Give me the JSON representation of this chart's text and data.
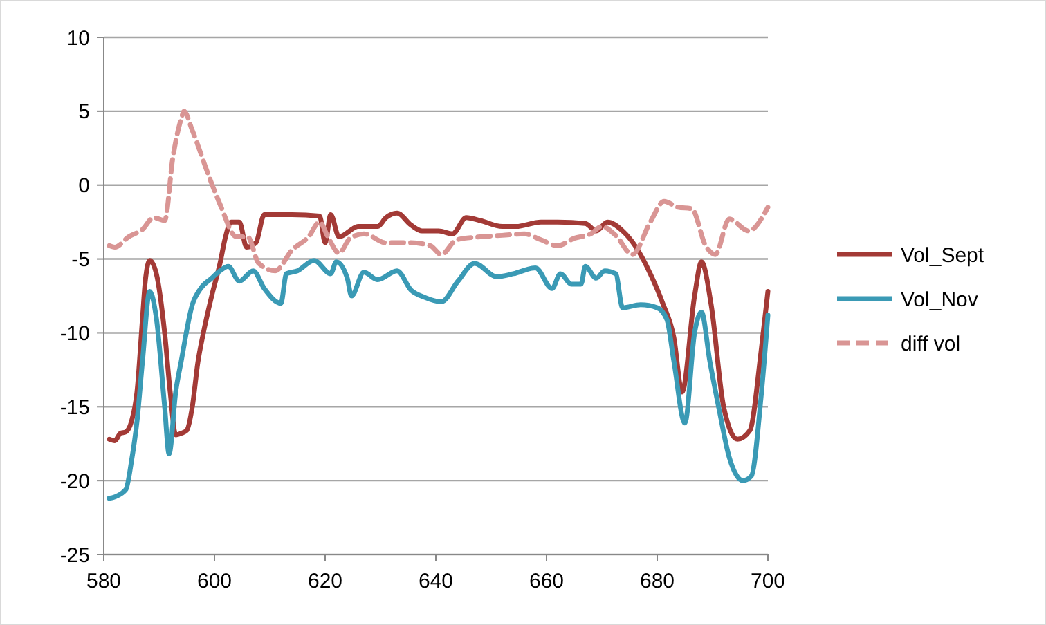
{
  "chart_data": {
    "type": "line",
    "xlim": [
      580,
      700
    ],
    "xticks": [
      580,
      600,
      620,
      640,
      660,
      680,
      700
    ],
    "ylim": [
      -25,
      10
    ],
    "yticks": [
      -25,
      -20,
      -15,
      -10,
      -5,
      0,
      5,
      10
    ],
    "grid": "y",
    "legend": "right",
    "marker": "none",
    "series": [
      {
        "name": "Vol_Sept",
        "color": "#a33a36",
        "line_style": "solid",
        "x": [
          581,
          582,
          583,
          584,
          585,
          586,
          587,
          587.5,
          588.3,
          589.5,
          591,
          592,
          593,
          594,
          595,
          596,
          597,
          598,
          599.5,
          601,
          602,
          603,
          604.5,
          605.8,
          607.5,
          609,
          614,
          619,
          620,
          621,
          622.5,
          626,
          629.5,
          631,
          633,
          635.5,
          637.5,
          640.5,
          643,
          645.5,
          648,
          652,
          654.5,
          659,
          662,
          667,
          669,
          671,
          673.75,
          676,
          678.75,
          681,
          683,
          684.5,
          686.75,
          688,
          689.75,
          692,
          694.5,
          696.75,
          698.75,
          700
        ],
        "values": [
          -17.2,
          -17.3,
          -16.8,
          -16.7,
          -16,
          -14,
          -9,
          -6.5,
          -5.1,
          -6,
          -10,
          -14,
          -16.9,
          -16.8,
          -16.6,
          -15,
          -12,
          -10,
          -7.5,
          -5.3,
          -3.5,
          -2.5,
          -2.5,
          -4.2,
          -3.9,
          -2,
          -2,
          -2.1,
          -3.9,
          -2,
          -3.5,
          -2.8,
          -2.8,
          -2.2,
          -1.9,
          -2.7,
          -3.1,
          -3.1,
          -3.3,
          -2.2,
          -2.4,
          -2.8,
          -2.8,
          -2.5,
          -2.5,
          -2.6,
          -3.1,
          -2.5,
          -3.1,
          -4.1,
          -6,
          -8,
          -10.3,
          -14,
          -7.5,
          -5.2,
          -8.1,
          -15,
          -17.2,
          -16.6,
          -11.3,
          -7.2
        ]
      },
      {
        "name": "Vol_Nov",
        "color": "#3a9ab5",
        "line_style": "solid",
        "x": [
          581,
          582,
          584,
          585,
          586,
          587,
          588.3,
          589.5,
          591,
          591.8,
          593,
          594,
          596,
          597.5,
          599.5,
          601,
          602.5,
          604.5,
          607,
          609,
          612,
          613,
          615,
          618,
          621,
          622,
          624,
          624.75,
          627,
          629.5,
          633,
          635.5,
          638,
          641,
          644,
          647,
          651,
          654,
          658,
          661,
          662.5,
          664.5,
          666.25,
          667,
          669,
          670.5,
          672.5,
          673.75,
          677,
          680,
          681.75,
          683,
          685,
          686.75,
          688,
          689.5,
          691.25,
          693,
          695.5,
          697,
          698.75,
          700
        ],
        "values": [
          -21.2,
          -21.1,
          -20.6,
          -18.7,
          -16,
          -11.9,
          -7.2,
          -9,
          -15,
          -18.2,
          -14,
          -11.9,
          -8.1,
          -7,
          -6.3,
          -5.8,
          -5.5,
          -6.5,
          -5.8,
          -7,
          -8,
          -6,
          -5.8,
          -5.1,
          -6,
          -5.2,
          -6.3,
          -7.5,
          -5.9,
          -6.4,
          -5.8,
          -7.1,
          -7.6,
          -7.9,
          -6.5,
          -5.3,
          -6.2,
          -6,
          -5.6,
          -7,
          -6,
          -6.7,
          -6.7,
          -5.5,
          -6.3,
          -5.8,
          -6,
          -8.3,
          -8.1,
          -8.3,
          -9.1,
          -11.9,
          -16.1,
          -10,
          -8.6,
          -11.9,
          -15.3,
          -18.4,
          -20,
          -19.7,
          -14.4,
          -8.8
        ]
      },
      {
        "name": "diff vol",
        "color": "#d99594",
        "line_style": "dashed",
        "x": [
          581,
          582,
          584.5,
          587,
          589,
          591,
          592.5,
          594,
          594.5,
          596,
          599,
          601,
          604,
          606,
          608,
          611,
          614,
          617,
          619,
          620.5,
          622.5,
          624.5,
          627,
          631,
          635.5,
          639,
          641,
          643.75,
          648,
          652,
          656,
          659,
          662,
          665,
          668,
          670,
          672.5,
          675.5,
          678.75,
          681.25,
          683.75,
          686.25,
          688.75,
          690.5,
          693,
          696.5,
          700
        ],
        "values": [
          -4.1,
          -4.2,
          -3.5,
          -3,
          -2.2,
          -2.4,
          1.9,
          4.5,
          5,
          3.7,
          0.6,
          -1.3,
          -3.5,
          -3.5,
          -5.3,
          -5.8,
          -4.4,
          -3.5,
          -2.5,
          -3.5,
          -4.6,
          -3.6,
          -3.3,
          -3.9,
          -3.9,
          -4.1,
          -4.7,
          -3.7,
          -3.5,
          -3.4,
          -3.3,
          -3.7,
          -4.1,
          -3.6,
          -3.3,
          -2.8,
          -3.4,
          -4.7,
          -2.5,
          -1.1,
          -1.5,
          -1.6,
          -4.1,
          -4.7,
          -2.3,
          -3.1,
          -1.5
        ]
      }
    ]
  }
}
